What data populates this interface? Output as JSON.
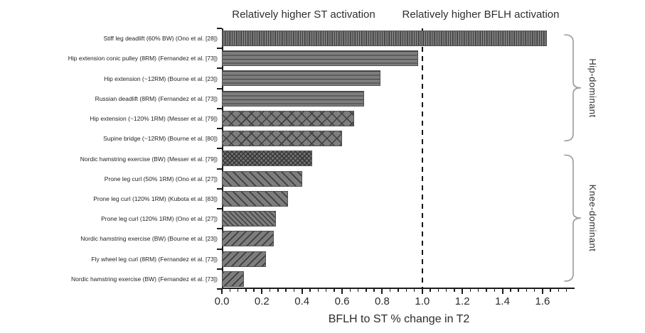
{
  "chart_data": {
    "type": "bar",
    "orientation": "horizontal",
    "annotations": {
      "left": "Relatively higher ST activation",
      "right": "Relatively higher BFLH activation"
    },
    "xlabel": "BFLH to ST % change in T2",
    "xlim": [
      0,
      1.76
    ],
    "xticks_major": [
      0.0,
      0.2,
      0.4,
      0.6,
      0.8,
      1.0,
      1.2,
      1.4,
      1.6
    ],
    "minor_tick_step": 0.04,
    "reference_line_x": 1.0,
    "grid": false,
    "categories": [
      "Stiff leg deadlift (60% BW) (Ono et al. [28])",
      "Hip extension conic pulley (8RM) (Fernandez et al. [73])",
      "Hip extension (~12RM) (Bourne et al. [23])",
      "Russian deadlift (8RM) (Fernandez et al. [73])",
      "Hip extension (~120% 1RM) (Messer et al. [79])",
      "Supine bridge (~12RM) (Bourne et al. [80])",
      "Nordic hamstring exercise (BW) (Messer et al. [79])",
      "Prone leg curl (50% 1RM) (Ono et al. [27])",
      "Prone leg curl (120% 1RM) (Kubota et al. [83])",
      "Prone leg curl (120% 1RM) (Ono et al. [27])",
      "Nordic hamstring exercise (BW) (Bourne et al. [23])",
      "Fly wheel leg curl (8RM) (Fernandez et al. [73])",
      "Nordic hamstring exercise (BW) (Fernandez et al. [73])"
    ],
    "values": [
      1.62,
      0.98,
      0.79,
      0.71,
      0.66,
      0.6,
      0.45,
      0.4,
      0.33,
      0.27,
      0.26,
      0.22,
      0.11
    ],
    "patterns": [
      "vertical",
      "horizontal",
      "horizontal",
      "horizontal",
      "crosshatch-large",
      "crosshatch-large",
      "crosshatch-dense",
      "diagonal-back",
      "diagonal-back",
      "diagonal-back-fine",
      "diagonal-fwd",
      "diagonal-fwd",
      "diagonal-fwd"
    ],
    "groups": [
      {
        "label": "Hip-dominant",
        "from_index": 0,
        "to_index": 5
      },
      {
        "label": "Knee-dominant",
        "from_index": 6,
        "to_index": 12
      }
    ],
    "colors": {
      "bar_fill": "#7d7d7d",
      "hatch": "#3e3e3e",
      "axis": "#1c1c1c",
      "reference_line": "#111111",
      "brace": "#999999"
    }
  }
}
